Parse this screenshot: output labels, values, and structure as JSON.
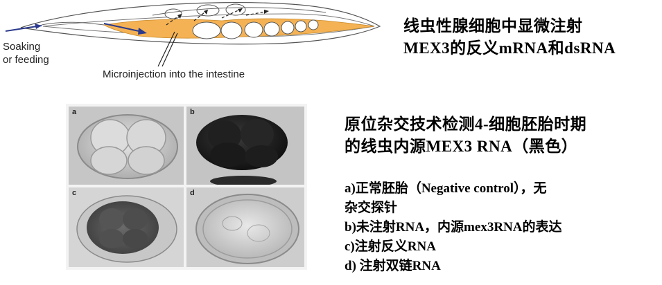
{
  "diagram": {
    "soaking_label_line1": "Soaking",
    "soaking_label_line2": "or feeding",
    "microinjection_label": "Microinjection into the intestine"
  },
  "injection_title": {
    "line1": "线虫性腺细胞中显微注射",
    "line2": "MEX3的反义mRNA和dsRNA"
  },
  "insitu_title": {
    "line1": "原位杂交技术检测4-细胞胚胎时期",
    "line2": "的线虫内源MEX3 RNA（黑色）"
  },
  "captions": {
    "a_line1": "a)正常胚胎（Negative control），无",
    "a_line2": "杂交探针",
    "b": "b)未注射RNA，内源mex3RNA的表达",
    "c": "c)注射反义RNA",
    "d": "d)  注射双链RNA"
  },
  "panels": {
    "a": "a",
    "b": "b",
    "c": "c",
    "d": "d"
  },
  "colors": {
    "intestine": "#f5b254",
    "arrow": "#2b3a8c",
    "stain_dark": "#1e1e1e"
  }
}
